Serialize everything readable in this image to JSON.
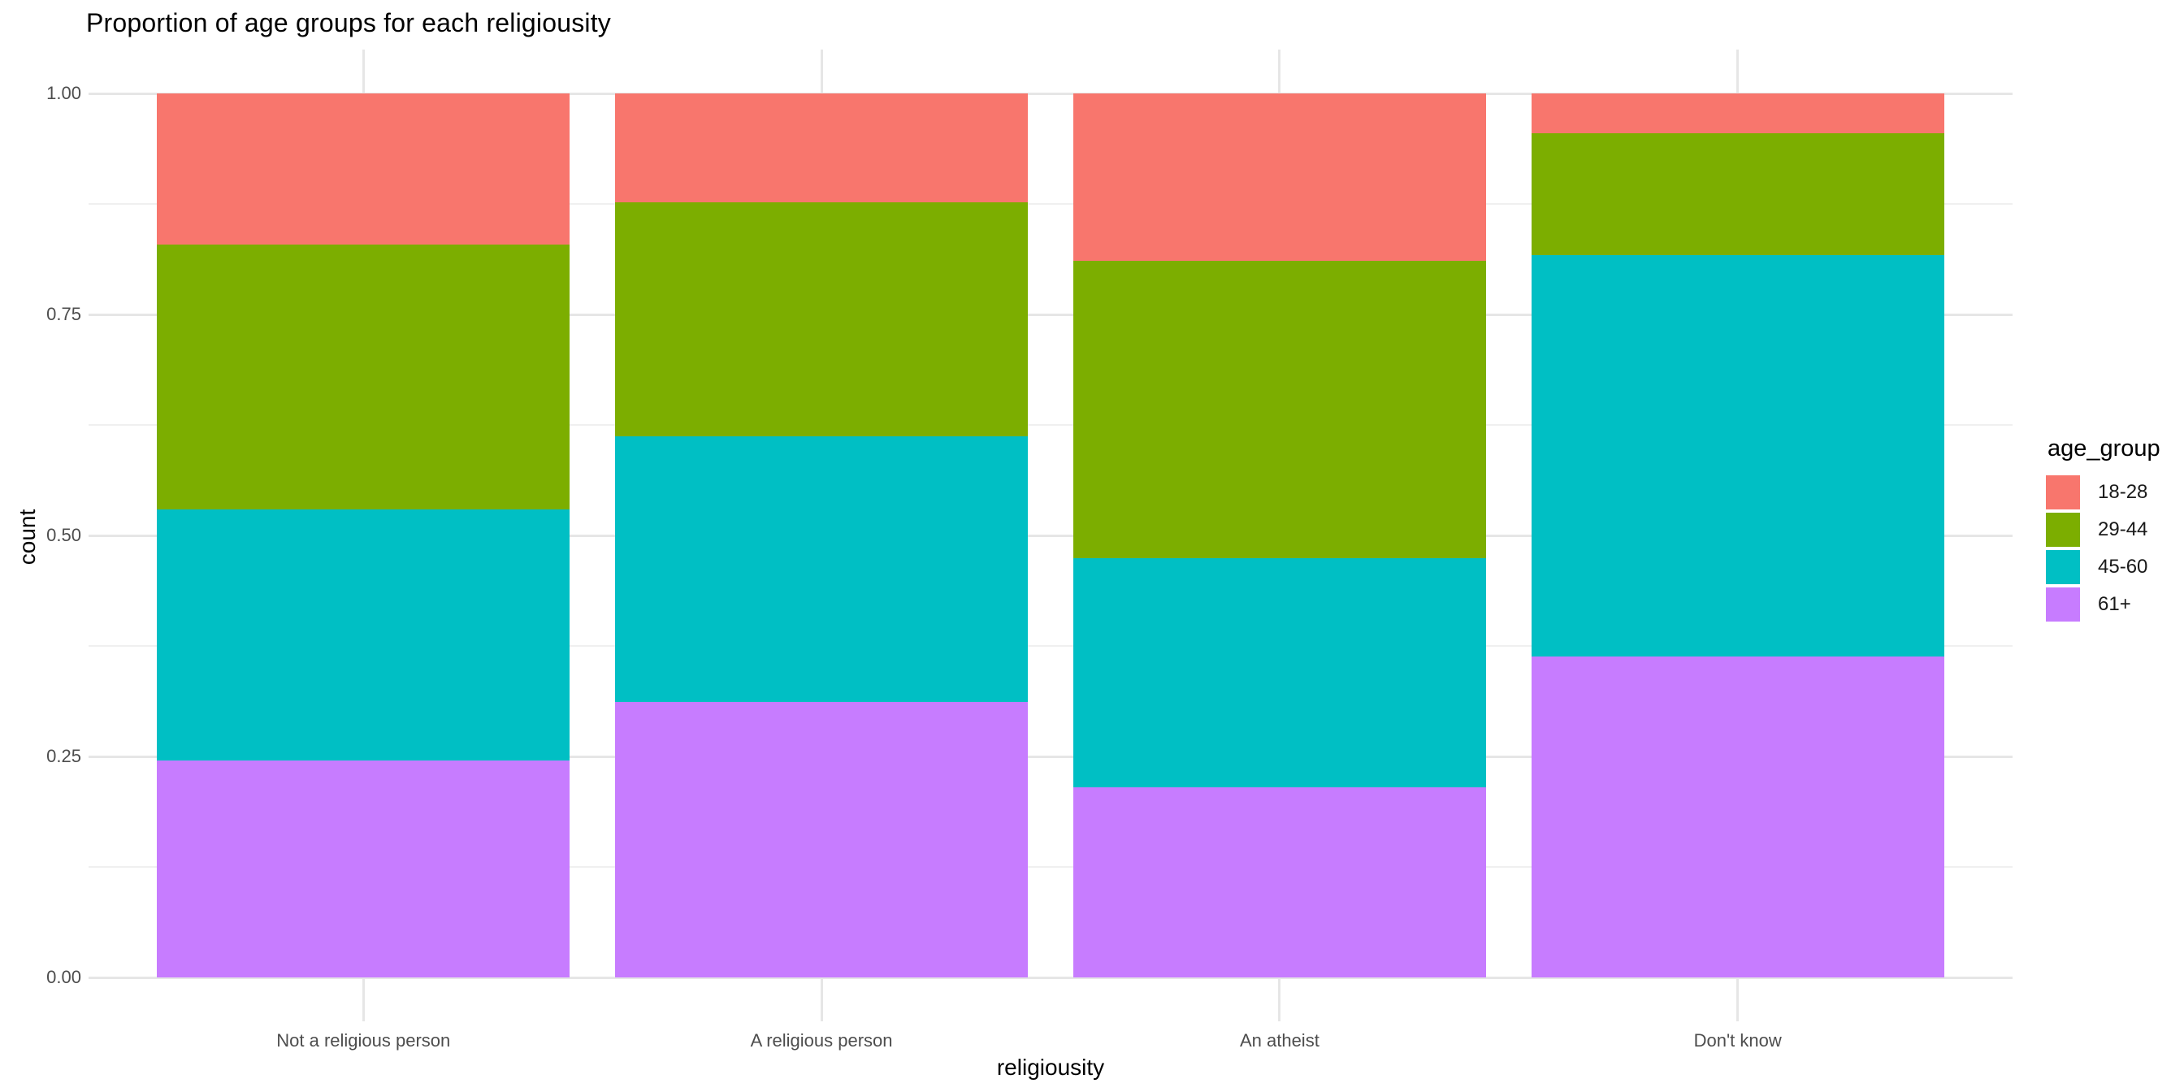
{
  "chart_data": {
    "type": "bar",
    "stacked": true,
    "normalized": true,
    "title": "Proportion of age groups for each religiousity",
    "xlabel": "religiousity",
    "ylabel": "count",
    "legend_title": "age_group",
    "legend_position": "right",
    "categories": [
      "Not a religious person",
      "A religious person",
      "An atheist",
      "Don't know"
    ],
    "series": [
      {
        "name": "18-28",
        "color": "#F8766D",
        "values": [
          0.171,
          0.123,
          0.189,
          0.045
        ]
      },
      {
        "name": "29-44",
        "color": "#7CAE00",
        "values": [
          0.3,
          0.265,
          0.337,
          0.138
        ]
      },
      {
        "name": "45-60",
        "color": "#00BFC4",
        "values": [
          0.284,
          0.3,
          0.259,
          0.454
        ]
      },
      {
        "name": "61+",
        "color": "#C77CFF",
        "values": [
          0.245,
          0.312,
          0.215,
          0.363
        ]
      }
    ],
    "stack_order_bottom_to_top": [
      "61+",
      "45-60",
      "29-44",
      "18-28"
    ],
    "ylim": [
      0,
      1
    ],
    "y_ticks": [
      {
        "value": 0.0,
        "label": "0.00"
      },
      {
        "value": 0.25,
        "label": "0.25"
      },
      {
        "value": 0.5,
        "label": "0.50"
      },
      {
        "value": 0.75,
        "label": "0.75"
      },
      {
        "value": 1.0,
        "label": "1.00"
      }
    ],
    "y_minor_gridlines": [
      0.125,
      0.375,
      0.625,
      0.875
    ],
    "grid": true,
    "grid_major_color": "#e6e6e6",
    "grid_minor_color": "#f0f0f0",
    "background_color": "#ffffff"
  }
}
